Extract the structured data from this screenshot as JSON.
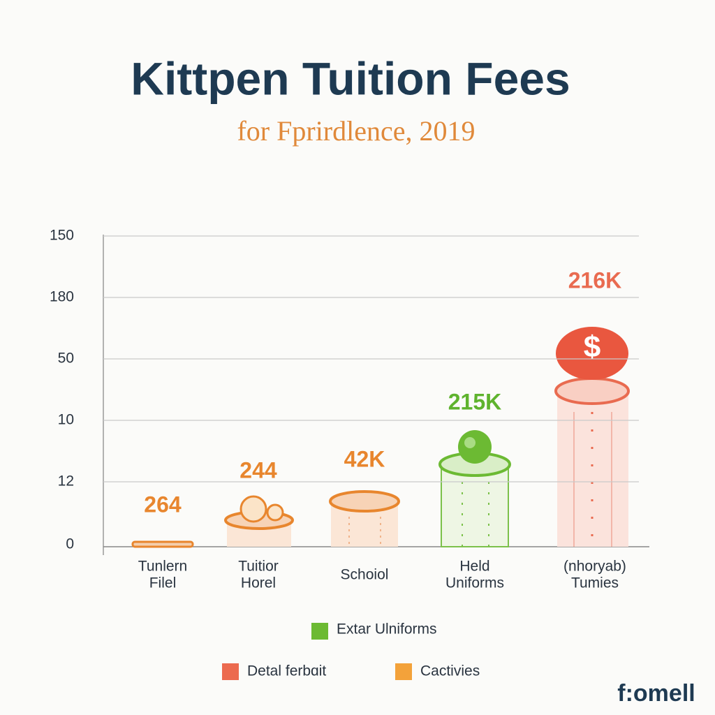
{
  "title": "Kittpen Tuition Fees",
  "subtitle": "for Fprirdlence, 2019",
  "axis_labels": [
    "150",
    "180",
    "50",
    "10",
    "12",
    "0"
  ],
  "columns": [
    {
      "label": [
        "Tunlern",
        "Filel"
      ],
      "value_label": "264"
    },
    {
      "label": [
        "Tuitior",
        "Horel"
      ],
      "value_label": "244"
    },
    {
      "label": [
        "Schoiol"
      ],
      "value_label": "42K"
    },
    {
      "label": [
        "Held",
        "Uniforms"
      ],
      "value_label": "215K"
    },
    {
      "label": [
        "(nhoryab)",
        "Tumies"
      ],
      "value_label": "216K"
    }
  ],
  "legend": [
    "Extar Ulniforms",
    "Detal ferbɑit",
    "Cactivies"
  ],
  "logo": "f:omell"
}
